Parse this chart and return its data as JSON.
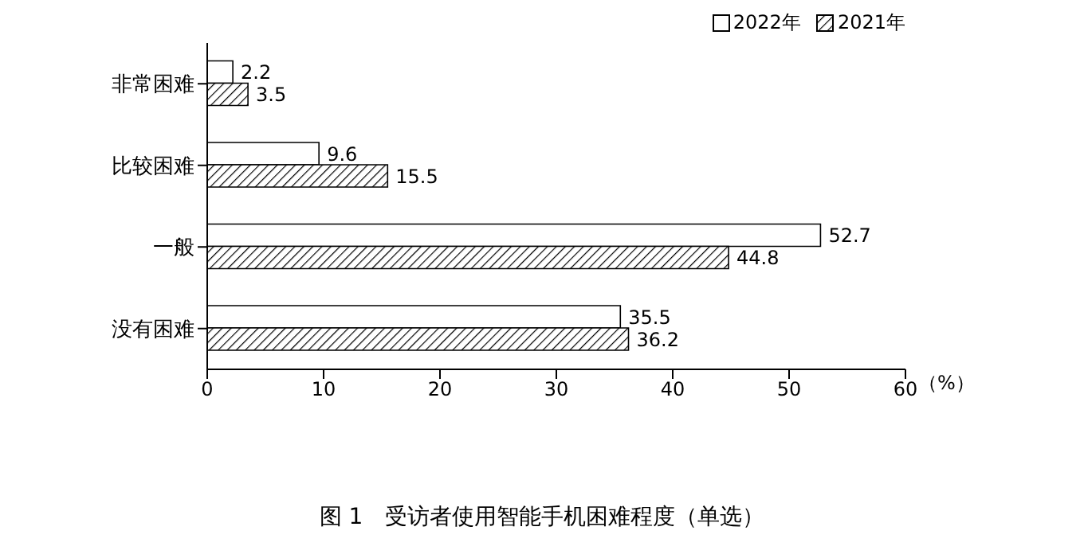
{
  "chart_data": {
    "type": "bar",
    "orientation": "horizontal",
    "title": "图 1　受访者使用智能手机困难程度（单选）",
    "xlabel": "（%）",
    "categories": [
      "非常困难",
      "比较困难",
      "一般",
      "没有困难"
    ],
    "series": [
      {
        "name": "2022年",
        "color": "#ffffff",
        "values": [
          2.2,
          9.6,
          52.7,
          35.5
        ]
      },
      {
        "name": "2021年",
        "color": "#000000",
        "values": [
          3.5,
          15.5,
          44.8,
          36.2
        ]
      }
    ],
    "xlim": [
      0,
      60
    ],
    "xticks": [
      0,
      10,
      20,
      30,
      40,
      50,
      60
    ],
    "grid": false,
    "legend": "top right",
    "data_labels": true
  }
}
